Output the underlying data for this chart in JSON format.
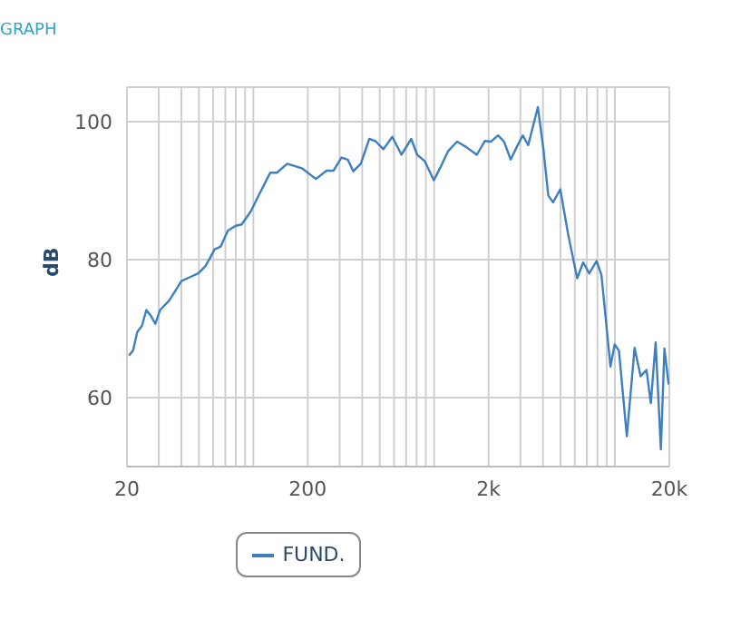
{
  "chart_data": {
    "type": "line",
    "title": "GRAPH",
    "ylabel": "dB",
    "log": "x",
    "grid": true,
    "legend": "bottom",
    "marker": "none",
    "line_style": "solid",
    "xlim": [
      20,
      20000
    ],
    "ylim": [
      50,
      105
    ],
    "yticks": [
      60,
      80,
      100
    ],
    "xticks": [
      {
        "value": 20,
        "label": "20"
      },
      {
        "value": 30,
        "label": null
      },
      {
        "value": 40,
        "label": null
      },
      {
        "value": 50,
        "label": null
      },
      {
        "value": 60,
        "label": null
      },
      {
        "value": 70,
        "label": null
      },
      {
        "value": 80,
        "label": null
      },
      {
        "value": 90,
        "label": null
      },
      {
        "value": 100,
        "label": null
      },
      {
        "value": 200,
        "label": "200"
      },
      {
        "value": 300,
        "label": null
      },
      {
        "value": 400,
        "label": null
      },
      {
        "value": 500,
        "label": null
      },
      {
        "value": 600,
        "label": null
      },
      {
        "value": 700,
        "label": null
      },
      {
        "value": 800,
        "label": null
      },
      {
        "value": 900,
        "label": null
      },
      {
        "value": 1000,
        "label": null
      },
      {
        "value": 2000,
        "label": "2k"
      },
      {
        "value": 3000,
        "label": null
      },
      {
        "value": 4000,
        "label": null
      },
      {
        "value": 5000,
        "label": null
      },
      {
        "value": 6000,
        "label": null
      },
      {
        "value": 7000,
        "label": null
      },
      {
        "value": 8000,
        "label": null
      },
      {
        "value": 9000,
        "label": null
      },
      {
        "value": 10000,
        "label": null
      },
      {
        "value": 20000,
        "label": "20k"
      }
    ],
    "series": [
      {
        "name": "FUND.",
        "color": "#3d7fc1",
        "x": [
          20.5,
          21.6,
          22.8,
          24.2,
          25.6,
          27.2,
          28.7,
          30.5,
          34.3,
          40,
          44.9,
          49.6,
          54.5,
          61.1,
          66,
          72.3,
          79.9,
          86.2,
          96.9,
          107,
          116,
          124,
          135,
          154,
          187,
          222,
          254,
          278,
          307,
          333,
          357,
          393,
          438,
          473,
          524,
          587,
          660,
          747,
          806,
          886,
          996,
          1085,
          1193,
          1341,
          1508,
          1723,
          1907,
          2059,
          2258,
          2437,
          2652,
          2861,
          3092,
          3315,
          3749,
          4020,
          4280,
          4548,
          4989,
          5510,
          6186,
          6679,
          7210,
          7914,
          8420,
          9450,
          9970,
          10530,
          11640,
          12850,
          13870,
          14960,
          15800,
          16800,
          17960,
          18790,
          19830
        ],
        "values": [
          66.1,
          66.8,
          69.5,
          70.4,
          72.7,
          71.8,
          70.7,
          72.7,
          74.1,
          76.9,
          77.5,
          78.0,
          79.1,
          81.5,
          81.9,
          84.2,
          84.9,
          85.1,
          87.0,
          89.3,
          91.1,
          92.6,
          92.6,
          93.9,
          93.2,
          91.7,
          92.9,
          92.9,
          94.8,
          94.5,
          92.8,
          93.9,
          97.5,
          97.2,
          96.0,
          97.8,
          95.2,
          97.5,
          95.2,
          94.3,
          91.5,
          93.4,
          95.7,
          97.1,
          96.3,
          95.2,
          97.2,
          97.1,
          98.0,
          97.1,
          94.5,
          96.3,
          98.0,
          96.6,
          102.1,
          96.1,
          89.3,
          88.3,
          90.2,
          83.7,
          77.3,
          79.6,
          78.0,
          79.8,
          77.8,
          64.5,
          67.7,
          66.8,
          54.4,
          67.2,
          63.1,
          64.0,
          59.2,
          68.0,
          52.5,
          67.1,
          61.9
        ]
      }
    ]
  }
}
